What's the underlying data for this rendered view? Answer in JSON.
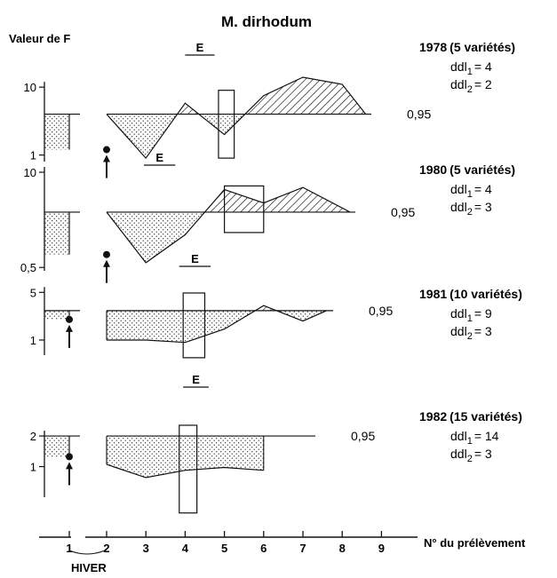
{
  "chart_data": {
    "type": "area",
    "title": "M. dirhodum",
    "ylabel": "Valeur de F",
    "xlabel": "N° du prélèvement",
    "winter_label": "HIVER",
    "x_ticks": [
      "1",
      "2",
      "3",
      "4",
      "5",
      "6",
      "7",
      "8",
      "9"
    ],
    "panels": [
      {
        "id": "1978",
        "heading": "1978",
        "varieties": "(5 variétés)",
        "ddl1_sub": "1",
        "ddl1_val": "= 4",
        "ddl2_sub": "2",
        "ddl2_val": "= 2",
        "threshold_label": "0,95",
        "ticks": [
          {
            "label": "10",
            "value": 10
          },
          {
            "label": "1",
            "value": 1
          }
        ],
        "ylim": [
          0.8,
          22
        ],
        "threshold": 4.0,
        "winter_value": 1.2,
        "f_values": {
          "x": [
            2,
            3,
            4,
            5,
            6,
            7,
            8,
            8.6
          ],
          "y": [
            4.0,
            0.9,
            5.8,
            2.0,
            7.5,
            14.0,
            11.0,
            4.0
          ]
        },
        "test_box": {
          "x_range": [
            4.85,
            5.25
          ],
          "y_range": [
            0.9,
            9.0
          ]
        },
        "e_label": "E",
        "e_span": [
          4.0,
          4.75
        ]
      },
      {
        "id": "1980",
        "heading": "1980",
        "varieties": "(5 variétés)",
        "ddl1_sub": "1",
        "ddl1_val": "= 4",
        "ddl2_sub": "2",
        "ddl2_val": "= 3",
        "threshold_label": "0,95",
        "ticks": [
          {
            "label": "10",
            "value": 10
          },
          {
            "label": "0,5",
            "value": 0.5
          }
        ],
        "ylim": [
          0.45,
          10
        ],
        "threshold": 2.85,
        "winter_value": 0.75,
        "f_values": {
          "x": [
            2,
            3,
            4,
            5,
            6,
            7,
            8.2
          ],
          "y": [
            2.85,
            0.58,
            1.4,
            5.8,
            3.8,
            6.2,
            2.85
          ]
        },
        "test_box": {
          "x_range": [
            5.0,
            6.0
          ],
          "y_range": [
            1.5,
            6.5
          ]
        },
        "e_label": "E",
        "e_span": [
          2.95,
          3.75
        ]
      },
      {
        "id": "1981",
        "heading": "1981",
        "varieties": "(10 variétés)",
        "ddl1_sub": "1",
        "ddl1_val": "= 9",
        "ddl2_sub": "2",
        "ddl2_val": "= 3",
        "threshold_label": "0,95",
        "ticks": [
          {
            "label": "5",
            "value": 5
          },
          {
            "label": "1",
            "value": 1
          }
        ],
        "ylim": [
          0.6,
          5.2
        ],
        "threshold": 2.7,
        "winter_value": 2.0,
        "f_values": {
          "x": [
            2,
            3,
            4,
            5,
            6,
            7,
            7.6
          ],
          "y": [
            1.0,
            1.0,
            0.92,
            1.45,
            3.2,
            1.9,
            2.7
          ]
        },
        "test_box": {
          "x_range": [
            3.95,
            4.5
          ],
          "y_range": [
            0.55,
            4.9
          ]
        },
        "e_label": "E",
        "e_span": [
          3.85,
          4.65
        ]
      },
      {
        "id": "1982",
        "heading": "1982",
        "varieties": "(15 variétés)",
        "ddl1_sub": "1",
        "ddl1_val": "= 14",
        "ddl2_sub": "2",
        "ddl2_val": "= 3",
        "threshold_label": "0,95",
        "ticks": [
          {
            "label": "2",
            "value": 2
          },
          {
            "label": "1",
            "value": 1
          }
        ],
        "ylim": [
          0.5,
          2.6
        ],
        "threshold": 2.0,
        "winter_value": 1.25,
        "f_values": {
          "x": [
            2,
            3,
            4,
            5,
            6
          ],
          "y": [
            1.05,
            0.78,
            0.92,
            0.98,
            0.92
          ]
        },
        "test_box": {
          "x_range": [
            3.85,
            4.3
          ],
          "y_range": [
            0.35,
            2.55
          ]
        },
        "e_label": "E",
        "e_span": [
          3.95,
          4.6
        ]
      }
    ]
  }
}
